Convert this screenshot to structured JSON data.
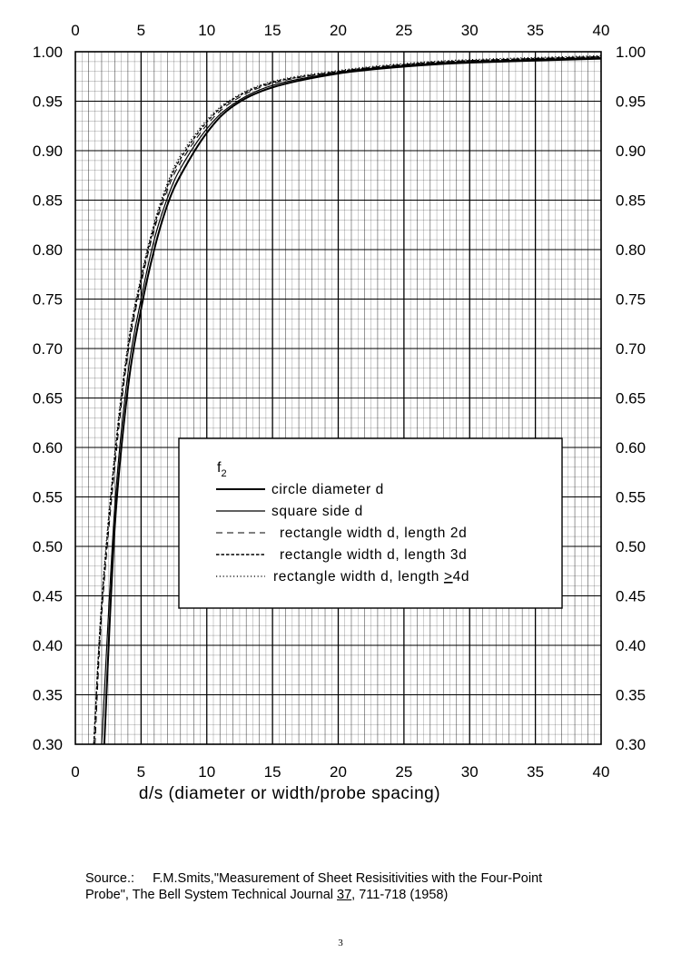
{
  "chart_data": {
    "type": "line",
    "xlabel": "d/s (diameter or width/probe spacing)",
    "xlim": [
      0,
      40
    ],
    "ylim": [
      0.3,
      1.0
    ],
    "x_ticks": [
      "0",
      "5",
      "10",
      "15",
      "20",
      "25",
      "30",
      "35",
      "40"
    ],
    "y_ticks": [
      "0.30",
      "0.35",
      "0.40",
      "0.45",
      "0.50",
      "0.55",
      "0.60",
      "0.65",
      "0.70",
      "0.75",
      "0.80",
      "0.85",
      "0.90",
      "0.95",
      "1.00"
    ],
    "grid": true,
    "legend": {
      "placement": "center-right",
      "title": "f",
      "title_subscript": "2",
      "entries": [
        {
          "label": "circle diameter d",
          "style": "solid"
        },
        {
          "label": "square side d",
          "style": "solid-thin"
        },
        {
          "label": "rectangle width d, length 2d",
          "style": "dashed"
        },
        {
          "label": "rectangle width d, length 3d",
          "style": "short-dashed"
        },
        {
          "label": "rectangle width d, length ",
          "label_underlined": ">",
          "label_suffix": "4d",
          "style": "dotted"
        }
      ]
    },
    "series": [
      {
        "x": [
          2.2,
          3,
          4,
          5,
          6,
          7,
          8,
          10,
          12,
          15,
          20,
          25,
          30,
          40
        ],
        "values": [
          0.3,
          0.52,
          0.66,
          0.74,
          0.8,
          0.845,
          0.875,
          0.918,
          0.945,
          0.964,
          0.978,
          0.985,
          0.989,
          0.993
        ]
      },
      {
        "x": [
          2.0,
          3,
          4,
          5,
          6,
          7,
          8,
          10,
          12,
          15,
          20,
          25,
          30,
          40
        ],
        "values": [
          0.3,
          0.54,
          0.675,
          0.75,
          0.81,
          0.852,
          0.882,
          0.922,
          0.947,
          0.966,
          0.979,
          0.986,
          0.99,
          0.994
        ]
      },
      {
        "x": [
          1.5,
          2,
          3,
          4,
          5,
          6,
          7,
          8,
          10,
          12,
          15,
          20,
          25,
          30,
          40
        ],
        "values": [
          0.3,
          0.43,
          0.58,
          0.695,
          0.765,
          0.82,
          0.86,
          0.888,
          0.926,
          0.95,
          0.968,
          0.98,
          0.987,
          0.991,
          0.995
        ]
      },
      {
        "x": [
          1.4,
          2,
          3,
          4,
          5,
          6,
          7,
          8,
          10,
          12,
          15,
          20,
          25,
          30,
          40
        ],
        "values": [
          0.3,
          0.44,
          0.59,
          0.7,
          0.77,
          0.824,
          0.864,
          0.892,
          0.929,
          0.952,
          0.969,
          0.98,
          0.987,
          0.991,
          0.995
        ]
      },
      {
        "x": [
          1.4,
          2,
          3,
          4,
          5,
          6,
          7,
          8,
          10,
          12,
          15,
          20,
          25,
          30,
          40
        ],
        "values": [
          0.3,
          0.445,
          0.595,
          0.705,
          0.773,
          0.827,
          0.867,
          0.895,
          0.931,
          0.953,
          0.97,
          0.981,
          0.988,
          0.992,
          0.996
        ]
      }
    ]
  },
  "source": {
    "prefix": "Source.:",
    "citation_line1": "F.M.Smits,\"Measurement of Sheet Resisitivities with the Four-Point",
    "citation_line2_a": "Probe\", The Bell System Technical Journal ",
    "volume": "37",
    "citation_line2_b": ", 711-718 (1958)"
  },
  "page_number": "3"
}
